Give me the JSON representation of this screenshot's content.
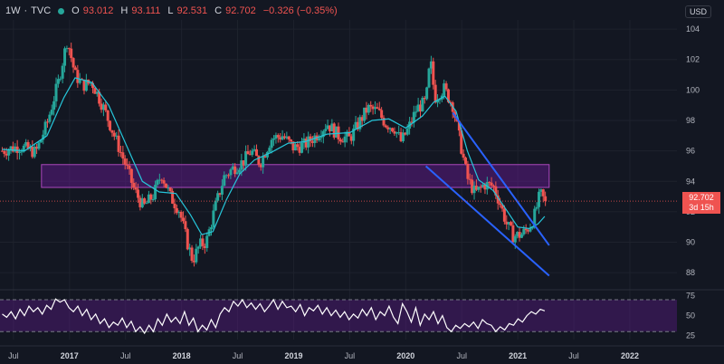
{
  "header": {
    "interval": "1W",
    "separator": "·",
    "symbol": "TVC",
    "open_label": "O",
    "open": "93.012",
    "high_label": "H",
    "high": "93.111",
    "low_label": "L",
    "low": "92.531",
    "close_label": "C",
    "close": "92.702",
    "change": "−0.326 (−0.35%)"
  },
  "currency_button": "USD",
  "last_price": {
    "value": "92.702",
    "countdown": "3d 15h"
  },
  "colors": {
    "background": "#131722",
    "up": "#26a69a",
    "down": "#ef5350",
    "ma": "#26c6da",
    "zone": "#6a1b9a",
    "trendline": "#2962ff",
    "rsi": "#ffffff"
  },
  "chart_data": [
    {
      "type": "candlestick",
      "title": "",
      "interval": "weekly",
      "y_axis": {
        "ticks": [
          88,
          90,
          92,
          94,
          96,
          98,
          100,
          102,
          104
        ],
        "ylim": [
          87,
          104.6
        ]
      },
      "x_axis": {
        "ticks": [
          "Jul",
          "2017",
          "Jul",
          "2018",
          "Jul",
          "2019",
          "Jul",
          "2020",
          "Jul",
          "2021",
          "Jul",
          "2022"
        ],
        "tick_dates": [
          2016.5,
          2017.0,
          2017.5,
          2018.0,
          2018.5,
          2019.0,
          2019.5,
          2020.0,
          2020.5,
          2021.0,
          2021.5,
          2022.0
        ],
        "bold": [
          "2017",
          "2018",
          "2019",
          "2020",
          "2021",
          "2022"
        ],
        "xlim": [
          2016.38,
          2022.42
        ]
      },
      "price_path": [
        [
          2016.4,
          96.0
        ],
        [
          2016.55,
          96.3
        ],
        [
          2016.7,
          95.9
        ],
        [
          2016.8,
          97.8
        ],
        [
          2016.9,
          100.5
        ],
        [
          2016.98,
          103.3
        ],
        [
          2017.05,
          101.0
        ],
        [
          2017.12,
          100.3
        ],
        [
          2017.2,
          100.5
        ],
        [
          2017.3,
          98.9
        ],
        [
          2017.4,
          97.0
        ],
        [
          2017.5,
          95.1
        ],
        [
          2017.58,
          93.4
        ],
        [
          2017.66,
          92.3
        ],
        [
          2017.75,
          93.1
        ],
        [
          2017.82,
          94.5
        ],
        [
          2017.9,
          93.0
        ],
        [
          2017.98,
          92.1
        ],
        [
          2018.05,
          90.0
        ],
        [
          2018.1,
          88.8
        ],
        [
          2018.16,
          89.8
        ],
        [
          2018.22,
          90.0
        ],
        [
          2018.3,
          92.3
        ],
        [
          2018.38,
          94.3
        ],
        [
          2018.45,
          94.8
        ],
        [
          2018.55,
          95.3
        ],
        [
          2018.62,
          96.0
        ],
        [
          2018.7,
          95.2
        ],
        [
          2018.8,
          96.8
        ],
        [
          2018.9,
          97.0
        ],
        [
          2019.0,
          96.2
        ],
        [
          2019.1,
          96.4
        ],
        [
          2019.2,
          97.0
        ],
        [
          2019.3,
          97.8
        ],
        [
          2019.4,
          97.0
        ],
        [
          2019.5,
          96.8
        ],
        [
          2019.58,
          97.8
        ],
        [
          2019.66,
          98.8
        ],
        [
          2019.75,
          98.6
        ],
        [
          2019.82,
          97.8
        ],
        [
          2019.9,
          97.5
        ],
        [
          2019.96,
          96.6
        ],
        [
          2020.02,
          97.4
        ],
        [
          2020.1,
          98.8
        ],
        [
          2020.18,
          99.2
        ],
        [
          2020.22,
          102.0
        ],
        [
          2020.26,
          99.5
        ],
        [
          2020.34,
          100.1
        ],
        [
          2020.42,
          99.0
        ],
        [
          2020.48,
          96.8
        ],
        [
          2020.55,
          94.2
        ],
        [
          2020.62,
          93.2
        ],
        [
          2020.7,
          93.8
        ],
        [
          2020.78,
          93.7
        ],
        [
          2020.84,
          92.6
        ],
        [
          2020.9,
          91.2
        ],
        [
          2020.96,
          90.4
        ],
        [
          2021.03,
          90.5
        ],
        [
          2021.08,
          90.8
        ],
        [
          2021.14,
          91.5
        ],
        [
          2021.2,
          93.2
        ],
        [
          2021.24,
          92.702
        ]
      ],
      "moving_average": [
        [
          2016.4,
          96.1
        ],
        [
          2016.6,
          96.0
        ],
        [
          2016.8,
          97.0
        ],
        [
          2016.95,
          99.5
        ],
        [
          2017.05,
          100.8
        ],
        [
          2017.2,
          100.5
        ],
        [
          2017.35,
          99.0
        ],
        [
          2017.5,
          96.5
        ],
        [
          2017.65,
          94.0
        ],
        [
          2017.8,
          93.3
        ],
        [
          2017.95,
          93.2
        ],
        [
          2018.08,
          91.8
        ],
        [
          2018.18,
          90.5
        ],
        [
          2018.28,
          90.7
        ],
        [
          2018.4,
          92.8
        ],
        [
          2018.52,
          94.5
        ],
        [
          2018.65,
          95.4
        ],
        [
          2018.8,
          95.9
        ],
        [
          2018.95,
          96.5
        ],
        [
          2019.1,
          96.6
        ],
        [
          2019.3,
          97.1
        ],
        [
          2019.5,
          97.2
        ],
        [
          2019.7,
          98.0
        ],
        [
          2019.85,
          98.1
        ],
        [
          2020.0,
          97.5
        ],
        [
          2020.15,
          98.3
        ],
        [
          2020.25,
          99.2
        ],
        [
          2020.35,
          99.6
        ],
        [
          2020.45,
          98.6
        ],
        [
          2020.55,
          96.0
        ],
        [
          2020.65,
          94.1
        ],
        [
          2020.78,
          93.4
        ],
        [
          2020.9,
          92.1
        ],
        [
          2021.0,
          91.0
        ],
        [
          2021.1,
          90.9
        ],
        [
          2021.18,
          91.2
        ],
        [
          2021.24,
          91.7
        ]
      ],
      "zone": {
        "x": [
          2016.75,
          2021.28
        ],
        "y": [
          93.6,
          95.1
        ]
      },
      "trendlines": [
        {
          "from": [
            2020.42,
            98.5
          ],
          "to": [
            2021.28,
            89.8
          ]
        },
        {
          "from": [
            2020.18,
            95.0
          ],
          "to": [
            2021.28,
            87.8
          ]
        }
      ],
      "last_price_line": 92.702
    },
    {
      "type": "line",
      "title": "",
      "name": "",
      "y_axis": {
        "ticks": [
          25,
          50,
          75
        ],
        "ylim": [
          20,
          78
        ]
      },
      "band": [
        30,
        70
      ],
      "values": [
        52,
        48,
        55,
        46,
        58,
        50,
        62,
        55,
        60,
        52,
        63,
        58,
        71,
        67,
        70,
        60,
        55,
        62,
        50,
        58,
        45,
        52,
        40,
        46,
        35,
        42,
        38,
        47,
        35,
        43,
        30,
        36,
        28,
        38,
        30,
        46,
        38,
        52,
        42,
        48,
        40,
        55,
        38,
        47,
        30,
        38,
        32,
        45,
        35,
        52,
        60,
        55,
        68,
        62,
        70,
        60,
        66,
        58,
        65,
        55,
        62,
        70,
        58,
        68,
        60,
        62,
        55,
        64,
        50,
        60,
        56,
        63,
        52,
        60,
        50,
        57,
        48,
        55,
        45,
        52,
        47,
        58,
        50,
        60,
        45,
        55,
        50,
        62,
        48,
        40,
        65,
        55,
        42,
        60,
        38,
        52,
        45,
        55,
        40,
        50,
        35,
        30,
        38,
        34,
        40,
        36,
        42,
        34,
        45,
        40,
        38,
        30,
        36,
        32,
        40,
        38,
        46,
        42,
        50,
        55,
        52,
        58,
        56
      ]
    }
  ]
}
